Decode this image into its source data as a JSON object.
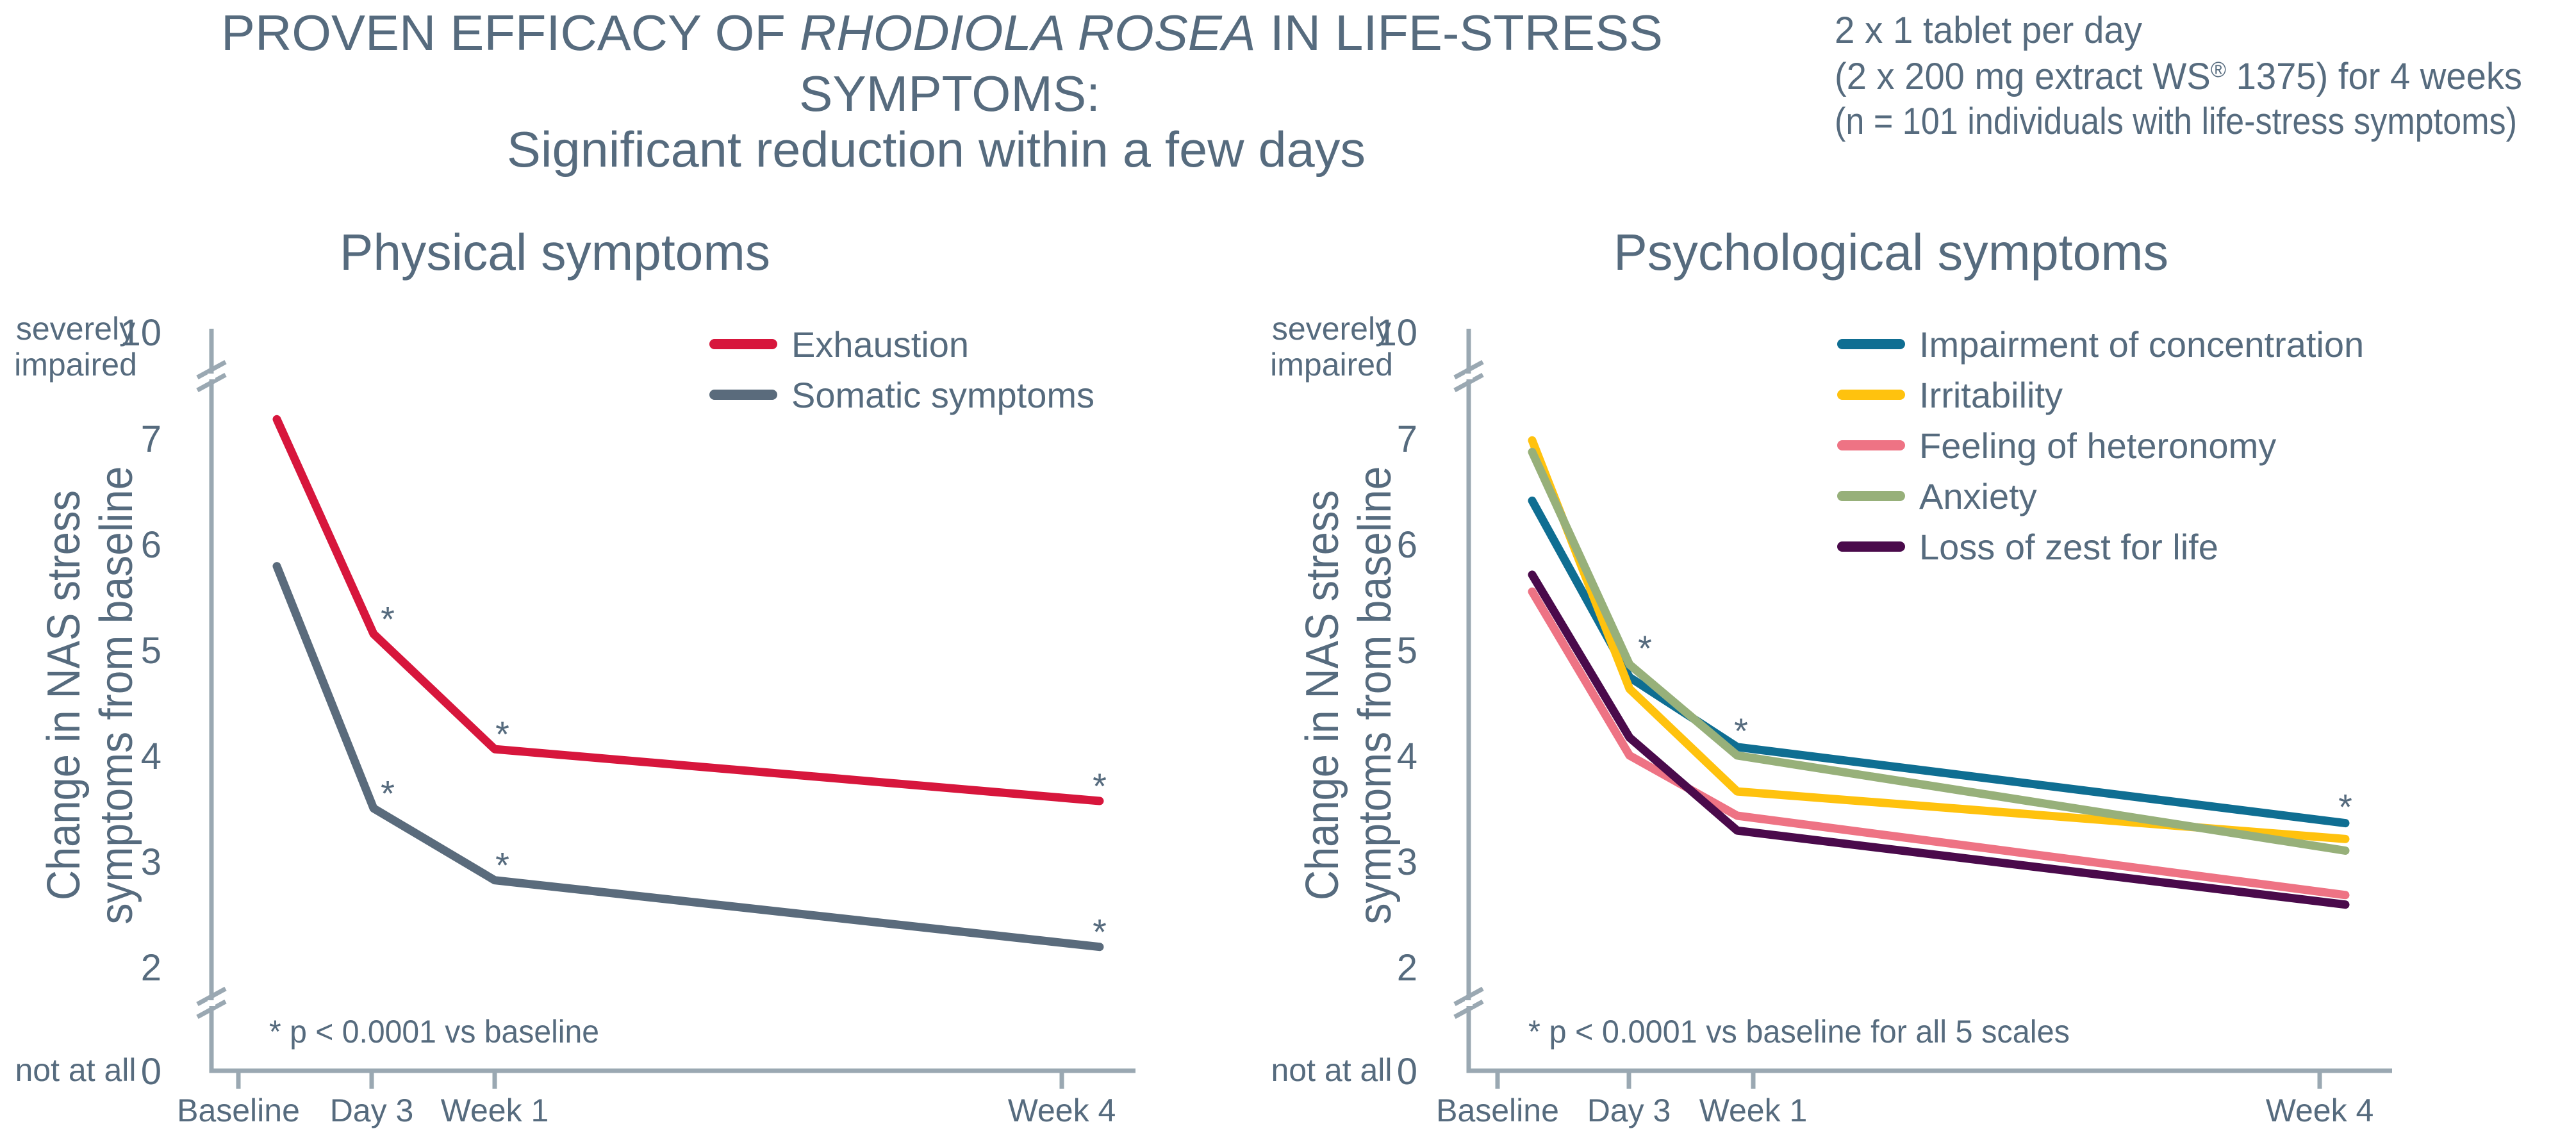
{
  "header": {
    "title_line1_pre": "PROVEN EFFICACY OF ",
    "title_line1_italic": "RHODIOLA ROSEA",
    "title_line1_post": " IN LIFE-STRESS",
    "title_line2": "SYMPTOMS:",
    "subtitle": "Significant reduction within a few days"
  },
  "dosage_note": {
    "line1": "2 x 1 tablet per day",
    "line2_pre": "(2 x 200 mg extract WS",
    "line2_reg": "®",
    "line2_post": " 1375) for 4 weeks",
    "line3": "(n = 101 individuals with life-stress symptoms)"
  },
  "colors": {
    "text": "#566b7e",
    "axis": "#9aa8b2",
    "exhaustion": "#d7163c",
    "somatic": "#5a6b7c",
    "concentration": "#0f6e92",
    "irritability": "#ffc20e",
    "heteronomy": "#ee7384",
    "anxiety": "#97b07a",
    "zest": "#4a0a4b"
  },
  "chart_data": [
    {
      "type": "line",
      "title": "Physical symptoms",
      "ylabel": "Change in NAS stress symptoms from baseline",
      "ylabel_lines": [
        "Change in NAS stress",
        "symptoms from baseline"
      ],
      "xlabel": "",
      "categories": [
        "Baseline",
        "Day 3",
        "Week 1",
        "Week 4"
      ],
      "yticks": [
        0,
        2,
        3,
        4,
        5,
        6,
        7,
        10
      ],
      "ylim": [
        0,
        10
      ],
      "axis_break": "between 0 and 2 and between 7 and 10",
      "y_anchor_labels": {
        "top": "severely impaired",
        "top_lines": [
          "severely",
          "impaired"
        ],
        "bottom": "not at all"
      },
      "grid": false,
      "legend_position": "top-right",
      "series": [
        {
          "name": "Exhaustion",
          "color_key": "exhaustion",
          "values": [
            7.18,
            5.15,
            4.06,
            3.57
          ],
          "significant": [
            false,
            true,
            true,
            true
          ]
        },
        {
          "name": "Somatic symptoms",
          "color_key": "somatic",
          "values": [
            5.79,
            3.5,
            2.82,
            2.19
          ],
          "significant": [
            false,
            true,
            true,
            true
          ]
        }
      ],
      "footnote": "* p < 0.0001 vs baseline"
    },
    {
      "type": "line",
      "title": "Psychological symptoms",
      "ylabel": "Change in NAS stress symptoms from baseline",
      "ylabel_lines": [
        "Change in NAS stress",
        "symptoms from baseline"
      ],
      "xlabel": "",
      "categories": [
        "Baseline",
        "Day 3",
        "Week 1",
        "Week 4"
      ],
      "yticks": [
        0,
        2,
        3,
        4,
        5,
        6,
        7,
        10
      ],
      "ylim": [
        0,
        10
      ],
      "axis_break": "between 0 and 2 and between 7 and 10",
      "y_anchor_labels": {
        "top": "severely impaired",
        "top_lines": [
          "severely",
          "impaired"
        ],
        "bottom": "not at all"
      },
      "grid": false,
      "legend_position": "top-right",
      "series": [
        {
          "name": "Impairment of concentration",
          "color_key": "concentration",
          "values": [
            6.41,
            4.74,
            4.08,
            3.36
          ]
        },
        {
          "name": "Irritability",
          "color_key": "irritability",
          "values": [
            6.98,
            4.63,
            3.66,
            3.21
          ]
        },
        {
          "name": "Feeling of heteronomy",
          "color_key": "heteronomy",
          "values": [
            5.55,
            4.0,
            3.43,
            2.68
          ]
        },
        {
          "name": "Anxiety",
          "color_key": "anxiety",
          "values": [
            6.87,
            4.86,
            4.0,
            3.1
          ]
        },
        {
          "name": "Loss of zest for life",
          "color_key": "zest",
          "values": [
            5.71,
            4.17,
            3.29,
            2.59
          ]
        }
      ],
      "significance_markers_at": [
        "Day 3",
        "Week 1",
        "Week 4"
      ],
      "footnote": "* p < 0.0001 vs baseline for all 5 scales"
    }
  ]
}
